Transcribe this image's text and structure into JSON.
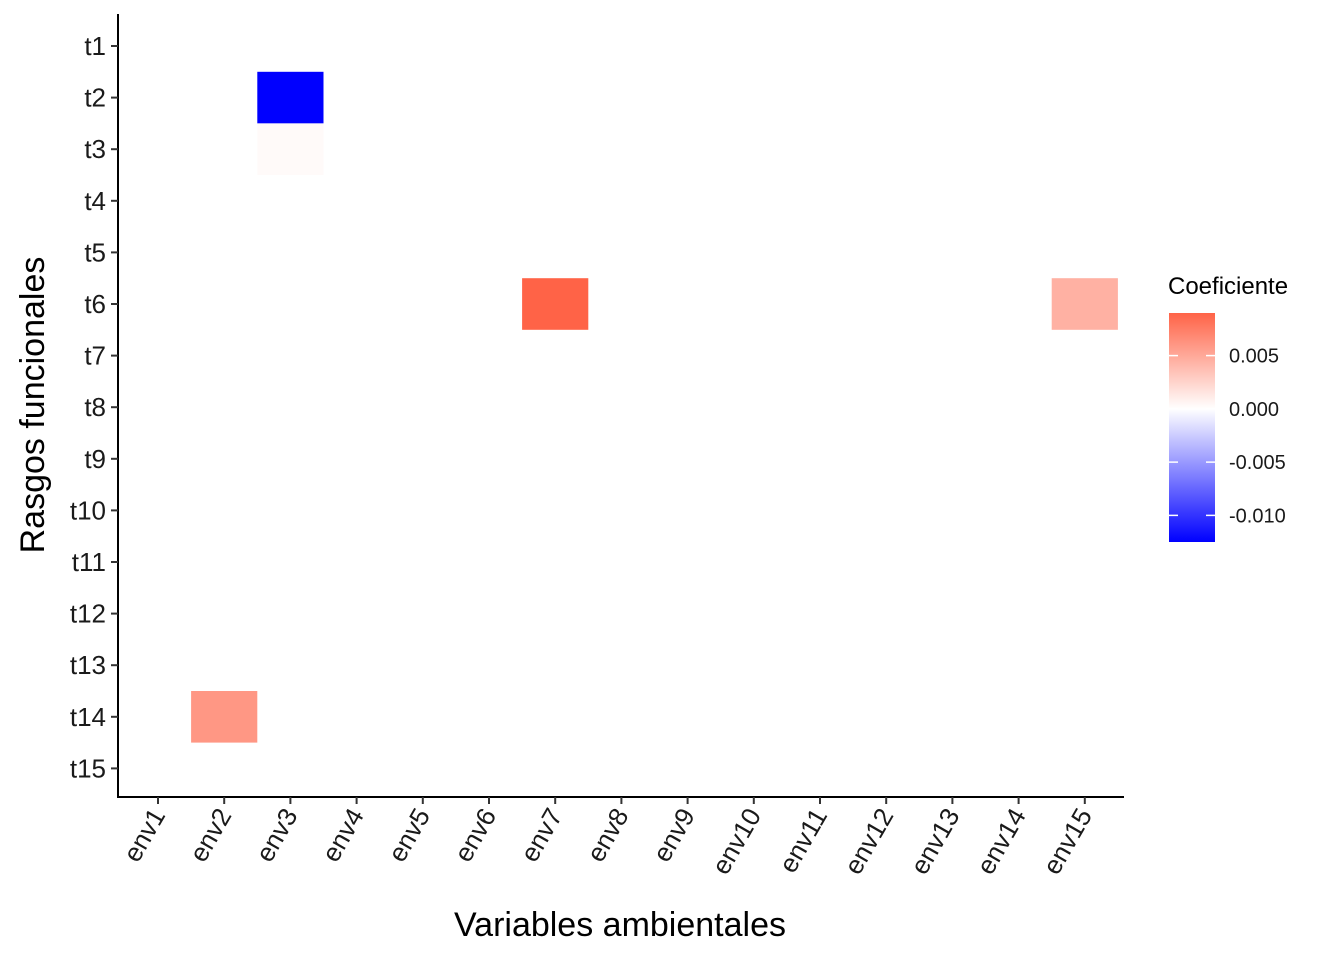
{
  "chart_data": {
    "type": "heatmap",
    "xlabel": "Variables ambientales",
    "ylabel": "Rasgos funcionales",
    "x_categories": [
      "env1",
      "env2",
      "env3",
      "env4",
      "env5",
      "env6",
      "env7",
      "env8",
      "env9",
      "env10",
      "env11",
      "env12",
      "env13",
      "env14",
      "env15"
    ],
    "y_categories": [
      "t1",
      "t2",
      "t3",
      "t4",
      "t5",
      "t6",
      "t7",
      "t8",
      "t9",
      "t10",
      "t11",
      "t12",
      "t13",
      "t14",
      "t15"
    ],
    "cells": [
      {
        "x": "env3",
        "y": "t2",
        "value": -0.0125
      },
      {
        "x": "env3",
        "y": "t3",
        "value": 0.0003
      },
      {
        "x": "env7",
        "y": "t6",
        "value": 0.009
      },
      {
        "x": "env15",
        "y": "t6",
        "value": 0.0045
      },
      {
        "x": "env2",
        "y": "t14",
        "value": 0.006
      }
    ],
    "legend": {
      "title": "Coeficiente",
      "position": "right",
      "breaks": [
        "0.005",
        "0.000",
        "-0.005",
        "-0.010"
      ],
      "break_values": [
        0.005,
        0.0,
        -0.005,
        -0.01
      ],
      "limits": [
        -0.0125,
        0.009
      ],
      "low_color": "#0000ff",
      "mid_color": "#ffffff",
      "high_color": "#ff6347"
    },
    "grid": false
  }
}
